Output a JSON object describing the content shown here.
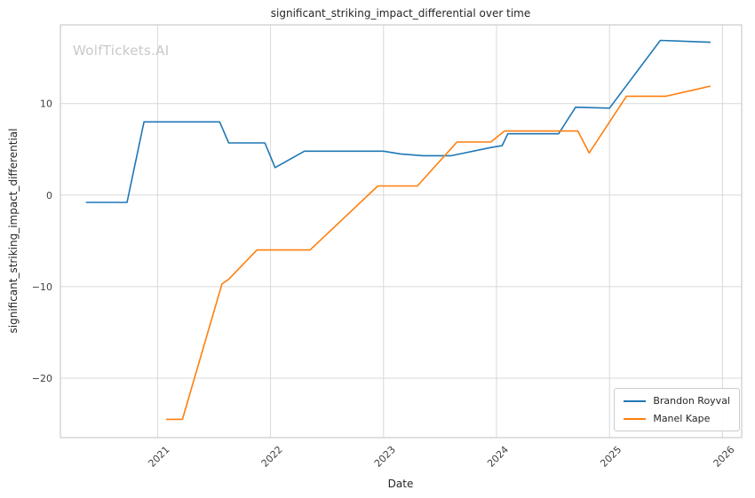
{
  "watermark": "WolfTickets.AI",
  "chart_data": {
    "type": "line",
    "title": "significant_striking_impact_differential over time",
    "xlabel": "Date",
    "ylabel": "significant_striking_impact_differential",
    "xlim": [
      2020.14,
      2026.17
    ],
    "ylim": [
      -26.5,
      18.6
    ],
    "x_ticks": [
      2021,
      2022,
      2023,
      2024,
      2025,
      2026
    ],
    "y_ticks": [
      -20,
      -10,
      0,
      10
    ],
    "grid": true,
    "legend_position": "lower right",
    "colors": {
      "grid": "#d9d9d9",
      "spine": "#cccccc",
      "tick_text": "#404040"
    },
    "series": [
      {
        "name": "Brandon Royval",
        "color": "#1f77b4",
        "points": [
          [
            2020.37,
            -0.8
          ],
          [
            2020.73,
            -0.8
          ],
          [
            2020.88,
            8.0
          ],
          [
            2021.55,
            8.0
          ],
          [
            2021.63,
            5.7
          ],
          [
            2021.95,
            5.7
          ],
          [
            2022.04,
            3.0
          ],
          [
            2022.3,
            4.8
          ],
          [
            2023.0,
            4.8
          ],
          [
            2023.15,
            4.5
          ],
          [
            2023.35,
            4.3
          ],
          [
            2023.6,
            4.3
          ],
          [
            2023.95,
            5.2
          ],
          [
            2024.05,
            5.4
          ],
          [
            2024.1,
            6.7
          ],
          [
            2024.55,
            6.7
          ],
          [
            2024.7,
            9.6
          ],
          [
            2025.0,
            9.5
          ],
          [
            2025.45,
            16.9
          ],
          [
            2025.89,
            16.7
          ]
        ]
      },
      {
        "name": "Manel Kape",
        "color": "#ff7f0e",
        "points": [
          [
            2021.08,
            -24.5
          ],
          [
            2021.22,
            -24.5
          ],
          [
            2021.57,
            -9.7
          ],
          [
            2021.63,
            -9.2
          ],
          [
            2021.88,
            -6.0
          ],
          [
            2022.35,
            -6.0
          ],
          [
            2022.95,
            1.0
          ],
          [
            2023.3,
            1.0
          ],
          [
            2023.65,
            5.8
          ],
          [
            2023.95,
            5.8
          ],
          [
            2024.07,
            7.0
          ],
          [
            2024.72,
            7.0
          ],
          [
            2024.82,
            4.6
          ],
          [
            2025.15,
            10.8
          ],
          [
            2025.5,
            10.8
          ],
          [
            2025.89,
            11.9
          ]
        ]
      }
    ]
  },
  "legend": {
    "items": [
      "Brandon Royval",
      "Manel Kape"
    ]
  }
}
